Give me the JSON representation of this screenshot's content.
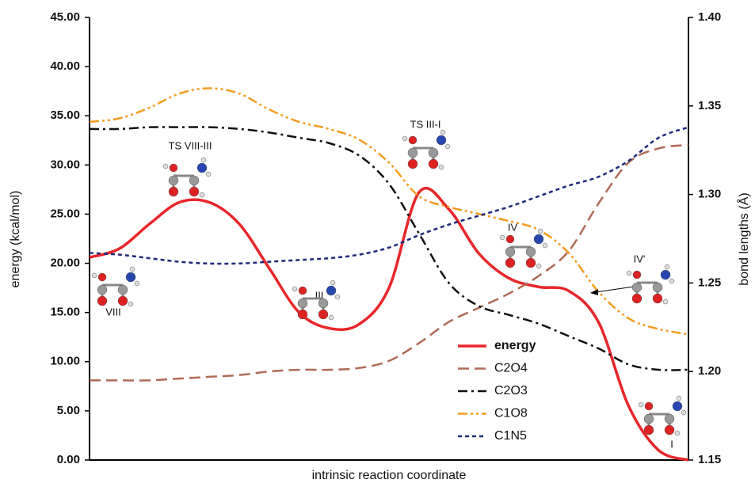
{
  "chart_data": {
    "type": "line",
    "y_label": "energy (kcal/mol)",
    "y2_label": "bond lengths (Å)",
    "x_label": "intrinsic reaction coordinate",
    "x": [
      0,
      5,
      10,
      15,
      20,
      25,
      30,
      35,
      40,
      45,
      50,
      55,
      60,
      65,
      70,
      75,
      80,
      85,
      90,
      95,
      100
    ],
    "xlim": [
      0,
      100
    ],
    "ylim": [
      0,
      45
    ],
    "yticks": [
      {
        "value": 0,
        "label": "0.00"
      },
      {
        "value": 5,
        "label": "5.00"
      },
      {
        "value": 10,
        "label": "10.00"
      },
      {
        "value": 15,
        "label": "15.00"
      },
      {
        "value": 20,
        "label": "20.00"
      },
      {
        "value": 25,
        "label": "25.00"
      },
      {
        "value": 30,
        "label": "30.00"
      },
      {
        "value": 35,
        "label": "35.00"
      },
      {
        "value": 40,
        "label": "40.00"
      },
      {
        "value": 45,
        "label": "45.00"
      }
    ],
    "y2lim": [
      1.15,
      1.4
    ],
    "y2ticks": [
      1.15,
      {
        "value": 1.2,
        "label": "1.20"
      },
      1.25,
      {
        "value": 1.3,
        "label": "1.30"
      },
      1.35,
      {
        "value": 1.4,
        "label": "1.40"
      }
    ],
    "series": [
      {
        "name": "energy",
        "color": "#e8262a",
        "style": "solid",
        "axis": "y",
        "values": [
          20.6,
          21.5,
          24.0,
          26.2,
          26.2,
          24.0,
          19.5,
          15.0,
          13.4,
          13.8,
          17.5,
          27.2,
          25.5,
          21.0,
          18.5,
          17.6,
          17.2,
          14.0,
          5.5,
          1.0,
          0
        ]
      },
      {
        "name": "C2O4",
        "color": "#b06a55",
        "style": "dashed",
        "axis": "y2",
        "values": [
          1.195,
          1.195,
          1.195,
          1.196,
          1.197,
          1.198,
          1.2,
          1.201,
          1.201,
          1.202,
          1.206,
          1.216,
          1.228,
          1.236,
          1.244,
          1.254,
          1.268,
          1.295,
          1.318,
          1.326,
          1.328
        ]
      },
      {
        "name": "C2O3",
        "color": "#111111",
        "style": "dashdot",
        "axis": "y2",
        "values": [
          1.337,
          1.337,
          1.338,
          1.338,
          1.338,
          1.337,
          1.335,
          1.332,
          1.329,
          1.322,
          1.306,
          1.278,
          1.25,
          1.237,
          1.232,
          1.227,
          1.22,
          1.213,
          1.204,
          1.201,
          1.201
        ]
      },
      {
        "name": "C1O8",
        "color": "#f39c1f",
        "style": "dashdotdot",
        "axis": "y2",
        "values": [
          1.341,
          1.343,
          1.349,
          1.357,
          1.36,
          1.357,
          1.348,
          1.341,
          1.337,
          1.331,
          1.318,
          1.299,
          1.293,
          1.289,
          1.285,
          1.28,
          1.267,
          1.245,
          1.23,
          1.224,
          1.221
        ]
      },
      {
        "name": "C1N5",
        "color": "#1f2a7a",
        "style": "dotted",
        "axis": "y2",
        "values": [
          1.267,
          1.266,
          1.264,
          1.262,
          1.261,
          1.261,
          1.262,
          1.263,
          1.264,
          1.266,
          1.27,
          1.277,
          1.283,
          1.288,
          1.293,
          1.299,
          1.305,
          1.31,
          1.319,
          1.332,
          1.338
        ]
      }
    ],
    "annotations": [
      "TS VIII-III",
      "III",
      "TS III-I",
      "IV",
      "IV'",
      "VIII",
      "I"
    ]
  }
}
